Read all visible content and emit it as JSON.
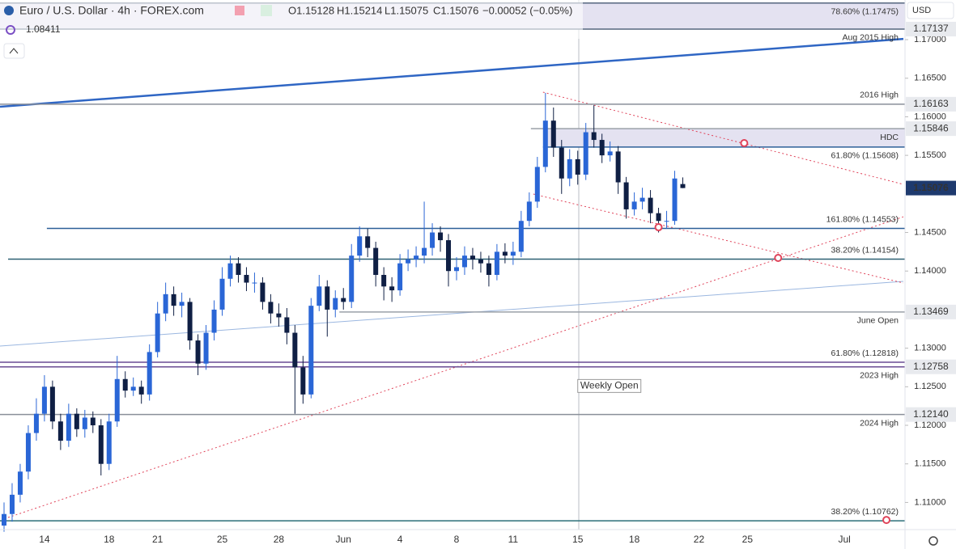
{
  "header": {
    "symbol": "Euro / U.S. Dollar · 4h · FOREX.com",
    "open": "O1.15128",
    "high": "H1.15214",
    "low": "L1.15075",
    "close": "C1.15076",
    "change": "−0.00052 (−0.05%)",
    "indicator_value": 1.08411,
    "currency": "USD"
  },
  "chart_data": {
    "type": "candlestick",
    "up_color": "#2a66d6",
    "down_color": "#0f1f44",
    "categories": [
      null,
      null,
      null,
      null,
      null,
      "14",
      null,
      null,
      null,
      null,
      null,
      null,
      null,
      "18",
      null,
      null,
      null,
      null,
      null,
      "21",
      null,
      null,
      null,
      null,
      null,
      null,
      null,
      "25",
      null,
      null,
      null,
      null,
      null,
      null,
      "28",
      null,
      null,
      null,
      null,
      null,
      null,
      null,
      "Jun",
      null,
      null,
      null,
      null,
      null,
      null,
      "4",
      null,
      null,
      null,
      null,
      null,
      null,
      "8",
      null,
      null,
      null,
      null,
      null,
      null,
      "11",
      null,
      null,
      null,
      null,
      null,
      null,
      null,
      "15",
      null,
      null,
      null,
      null,
      null,
      null,
      "18",
      null,
      null,
      null,
      null,
      null,
      null,
      null,
      "22",
      null,
      null,
      null,
      null,
      null,
      "25",
      null,
      null,
      null,
      null,
      null,
      null,
      null,
      null,
      null,
      null,
      null,
      "Jul",
      null,
      null,
      null,
      null,
      null,
      null,
      null
    ],
    "open": [
      1.107,
      1.1085,
      1.111,
      1.114,
      1.119,
      1.1215,
      1.125,
      1.1205,
      1.118,
      1.1215,
      1.1195,
      1.121,
      1.12,
      1.115,
      1.1205,
      1.126,
      1.1245,
      1.125,
      1.124,
      1.1295,
      1.1345,
      1.137,
      1.1355,
      1.136,
      1.131,
      1.128,
      1.132,
      1.135,
      1.139,
      1.141,
      1.1395,
      1.1385,
      1.1385,
      1.136,
      1.1345,
      1.134,
      1.132,
      1.1275,
      1.124,
      1.1355,
      1.138,
      1.135,
      1.1365,
      1.136,
      1.142,
      1.1445,
      1.143,
      1.1395,
      1.138,
      1.1375,
      1.141,
      1.1415,
      1.142,
      1.143,
      1.145,
      1.144,
      1.14,
      1.1405,
      1.142,
      1.1415,
      1.141,
      1.1395,
      1.1425,
      1.142,
      1.1425,
      1.1465,
      1.149,
      1.1535,
      1.1595,
      1.156,
      1.152,
      1.1545,
      1.1525,
      1.158,
      1.157,
      1.155,
      1.1555,
      1.1515,
      1.148,
      1.149,
      1.1495,
      1.1475,
      1.1465,
      1.1465,
      1.15128,
      null,
      null,
      null,
      null,
      null,
      null,
      null,
      null,
      null,
      null,
      null,
      null,
      null,
      null,
      null,
      null,
      null,
      null,
      null,
      null,
      null,
      null,
      null,
      null,
      null,
      null,
      null
    ],
    "high": [
      1.11,
      1.1125,
      1.115,
      1.12,
      1.1235,
      1.1265,
      1.1258,
      1.1215,
      1.1228,
      1.1222,
      1.122,
      1.1218,
      1.1208,
      1.1215,
      1.129,
      1.127,
      1.1262,
      1.1258,
      1.1305,
      1.136,
      1.1385,
      1.138,
      1.1372,
      1.1365,
      1.1318,
      1.133,
      1.1362,
      1.1405,
      1.142,
      1.1418,
      1.1405,
      1.1398,
      1.1392,
      1.137,
      1.1358,
      1.1352,
      1.133,
      1.129,
      1.1365,
      1.1395,
      1.1388,
      1.1375,
      1.1378,
      1.1435,
      1.1458,
      1.1455,
      1.1438,
      1.1405,
      1.1392,
      1.1422,
      1.1428,
      1.1432,
      1.149,
      1.1462,
      1.1458,
      1.1448,
      1.1418,
      1.1432,
      1.143,
      1.1425,
      1.142,
      1.1435,
      1.1436,
      1.1438,
      1.1478,
      1.1502,
      1.1548,
      1.1631,
      1.1612,
      1.157,
      1.1558,
      1.1556,
      1.1592,
      1.1615,
      1.1578,
      1.1568,
      1.1562,
      1.1522,
      1.1502,
      1.1508,
      1.1505,
      1.1482,
      1.1478,
      1.153,
      1.15214,
      null,
      null,
      null,
      null,
      null,
      null,
      null,
      null,
      null,
      null,
      null,
      null,
      null,
      null,
      null,
      null,
      null,
      null,
      null,
      null,
      null,
      null,
      null,
      null,
      null,
      null,
      null
    ],
    "low": [
      1.1062,
      1.1075,
      1.11,
      1.113,
      1.118,
      1.1205,
      1.1195,
      1.1168,
      1.1172,
      1.1185,
      1.1184,
      1.119,
      1.1135,
      1.1142,
      1.1198,
      1.1236,
      1.1238,
      1.1228,
      1.1232,
      1.1288,
      1.1335,
      1.1342,
      1.134,
      1.1298,
      1.1265,
      1.1272,
      1.131,
      1.1342,
      1.138,
      1.1385,
      1.1374,
      1.1372,
      1.135,
      1.1332,
      1.1328,
      1.1305,
      1.1215,
      1.1228,
      1.1235,
      1.1348,
      1.1315,
      1.134,
      1.135,
      1.1352,
      1.1412,
      1.1418,
      1.138,
      1.1362,
      1.136,
      1.1368,
      1.14,
      1.1405,
      1.141,
      1.142,
      1.1425,
      1.138,
      1.1388,
      1.1395,
      1.1402,
      1.1398,
      1.138,
      1.1388,
      1.141,
      1.1408,
      1.1418,
      1.1458,
      1.1482,
      1.1528,
      1.1548,
      1.15,
      1.151,
      1.1512,
      1.1518,
      1.156,
      1.154,
      1.1542,
      1.15,
      1.1468,
      1.1472,
      1.148,
      1.1462,
      1.145,
      1.1455,
      1.146,
      1.15075,
      null,
      null,
      null,
      null,
      null,
      null,
      null,
      null,
      null,
      null,
      null,
      null,
      null,
      null,
      null,
      null,
      null,
      null,
      null,
      null,
      null,
      null,
      null,
      null,
      null,
      null,
      null
    ],
    "close": [
      1.1085,
      1.111,
      1.114,
      1.119,
      1.1215,
      1.125,
      1.1205,
      1.118,
      1.1215,
      1.1195,
      1.121,
      1.12,
      1.115,
      1.1205,
      1.126,
      1.1245,
      1.125,
      1.124,
      1.1295,
      1.1345,
      1.137,
      1.1355,
      1.136,
      1.131,
      1.128,
      1.132,
      1.135,
      1.139,
      1.141,
      1.1395,
      1.1385,
      1.1385,
      1.136,
      1.1345,
      1.134,
      1.132,
      1.1275,
      1.124,
      1.1355,
      1.138,
      1.135,
      1.1365,
      1.136,
      1.142,
      1.1445,
      1.143,
      1.1395,
      1.138,
      1.1375,
      1.141,
      1.1415,
      1.142,
      1.143,
      1.145,
      1.144,
      1.14,
      1.1405,
      1.142,
      1.1415,
      1.141,
      1.1395,
      1.1425,
      1.142,
      1.1425,
      1.1465,
      1.149,
      1.1535,
      1.1595,
      1.156,
      1.152,
      1.1545,
      1.1525,
      1.158,
      1.157,
      1.155,
      1.1555,
      1.1515,
      1.148,
      1.149,
      1.1495,
      1.1475,
      1.1465,
      1.1465,
      1.152,
      1.15076,
      null,
      null,
      null,
      null,
      null,
      null,
      null,
      null,
      null,
      null,
      null,
      null,
      null,
      null,
      null,
      null,
      null,
      null,
      null,
      null,
      null,
      null,
      null,
      null,
      null,
      null,
      null
    ],
    "ylim": [
      1.10648,
      1.17514
    ],
    "yticks": [
      {
        "value": 1.17,
        "label": "1.17000"
      },
      {
        "value": 1.165,
        "label": "1.16500"
      },
      {
        "value": 1.16,
        "label": "1.16000"
      },
      {
        "value": 1.155,
        "label": "1.15500"
      },
      {
        "value": 1.145,
        "label": "1.14500"
      },
      {
        "value": 1.14,
        "label": "1.14000"
      },
      {
        "value": 1.13,
        "label": "1.13000"
      },
      {
        "value": 1.125,
        "label": "1.12500"
      },
      {
        "value": 1.12,
        "label": "1.12000"
      },
      {
        "value": 1.115,
        "label": "1.11500"
      },
      {
        "value": 1.11,
        "label": "1.11000"
      }
    ],
    "bands": [
      {
        "from": 1.17137,
        "to": 1.17475,
        "start": -0.5,
        "color": "#e4e2f1"
      },
      {
        "from": 1.15608,
        "to": 1.15846,
        "start": 66.7,
        "color": "#e4e2f1"
      }
    ],
    "levels": [
      {
        "price": 1.17475,
        "start": -0.5,
        "color": "#55667f",
        "label": "78.60% (1.17475)",
        "side": "below"
      },
      {
        "price": 1.17137,
        "start": -0.5,
        "color": "#55667f",
        "label": "Aug 2015 High",
        "side": "below",
        "tag": "1.17137"
      },
      {
        "price": 1.16163,
        "start": -0.5,
        "color": "#8a8f99",
        "label": "2016 High",
        "side": "above",
        "tag": "1.16163"
      },
      {
        "price": 1.15846,
        "start": 65.2,
        "color": "#9aa0a8",
        "label": "HDC",
        "side": "below",
        "tag": "1.15846"
      },
      {
        "price": 1.15608,
        "start": 66.7,
        "color": "#2d5f98",
        "label": "61.80% (1.15608)",
        "side": "below"
      },
      {
        "price": 1.14553,
        "start": 5.3,
        "color": "#2d5f98",
        "label": "161.80% (1.14553)",
        "side": "above"
      },
      {
        "price": 1.14154,
        "start": 0.5,
        "color": "#2d6073",
        "label": "38.20% (1.14154)",
        "side": "above"
      },
      {
        "price": 1.13469,
        "start": 41.5,
        "color": "#9aa0a8",
        "label": "June Open",
        "side": "below",
        "tag": "1.13469"
      },
      {
        "price": 1.12818,
        "start": -0.5,
        "color": "#6a4c93",
        "label": "61.80% (1.12818)",
        "side": "above"
      },
      {
        "price": 1.12758,
        "start": -0.5,
        "color": "#6a4c93",
        "label": "2023 High",
        "side": "below",
        "tag": "1.12758"
      },
      {
        "price": 1.1214,
        "start": -0.5,
        "color": "#8a8f99",
        "label": "2024 High",
        "side": "below",
        "tag": "1.12140"
      },
      {
        "price": 1.10762,
        "start": -0.5,
        "color": "#2b6f7a",
        "label": "38.20% (1.10762)",
        "side": "above"
      }
    ],
    "trendlines": [
      {
        "from": [
          -0.5,
          1.1613
        ],
        "to": [
          111.3,
          1.1701
        ],
        "color": "#2f66c4",
        "width": 2.5,
        "dash": false
      },
      {
        "from": [
          -0.5,
          1.13027
        ],
        "to": [
          111.3,
          1.13866
        ],
        "color": "#9bb7e0",
        "width": 1,
        "dash": false
      },
      {
        "from": [
          66.7,
          1.16319
        ],
        "to": [
          111.3,
          1.15124
        ],
        "color": "#e0445a",
        "width": 1,
        "dash": true
      },
      {
        "from": [
          65.5,
          1.14998
        ],
        "to": [
          111.3,
          1.13845
        ],
        "color": "#e0445a",
        "width": 1,
        "dash": true
      },
      {
        "from": [
          0.5,
          1.10805
        ],
        "to": [
          111.3,
          1.14704
        ],
        "color": "#e0445a",
        "width": 1,
        "dash": true
      }
    ],
    "markers": [
      {
        "index": 91.6,
        "price": 1.15658
      },
      {
        "index": 81,
        "price": 1.14568
      },
      {
        "index": 95.8,
        "price": 1.1417
      },
      {
        "index": 109.2,
        "price": 1.10773
      }
    ],
    "annotations": [
      {
        "text": "Weekly Open",
        "index": 71.1,
        "price": 1.1251
      }
    ]
  }
}
